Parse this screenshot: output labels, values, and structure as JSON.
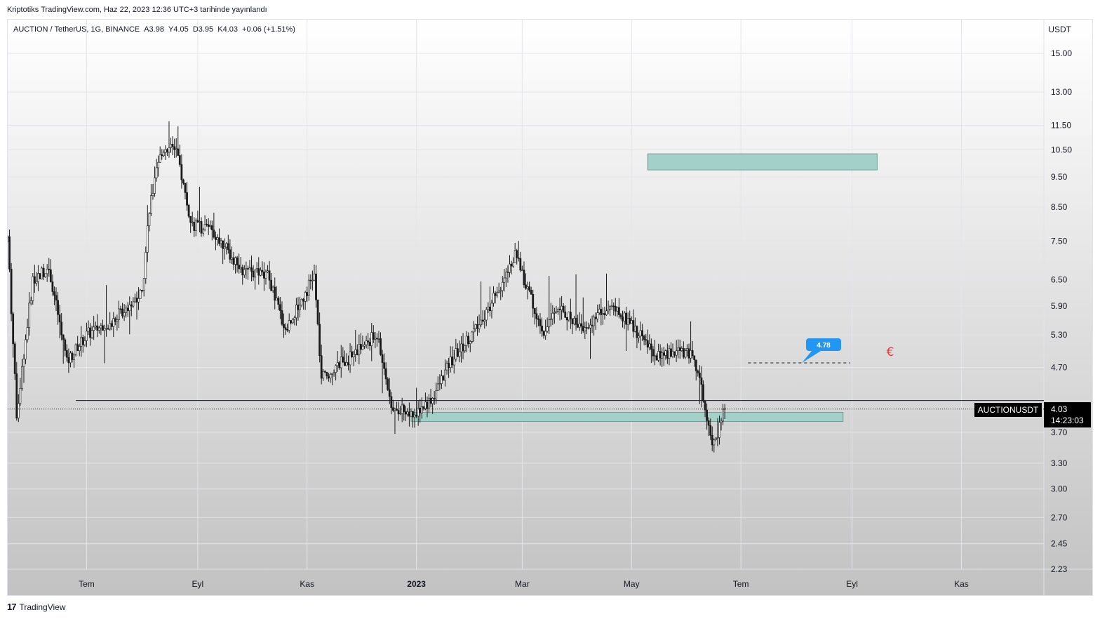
{
  "header": {
    "publisher_line": "Kriptotiks TradingView.com, Haz 22, 2023 12:36 UTC+3 tarihinde yayınlandı"
  },
  "legend": {
    "symbol": "AUCTION / TetherUS, 1G, BINANCE",
    "open": "A3.98",
    "high": "Y4.05",
    "low": "D3.95",
    "close": "K4.03",
    "change": "+0.06 (+1.51%)"
  },
  "currency": "USDT",
  "price_tag": {
    "symbol": "AUCTIONUSDT",
    "price": "4.03",
    "countdown": "14:23:03"
  },
  "annotations": {
    "callout_value": "4.78",
    "euro_mark": "€"
  },
  "footer": {
    "brand": "TradingView",
    "logo_text": "17"
  },
  "colors": {
    "background_top": "#ffffff",
    "background_bottom": "#c2c2c2",
    "candle": "#1a1a1a",
    "zone_fill": "#a3d1c9",
    "callout_blue": "#2196f3",
    "euro_red": "#e8383d",
    "price_tag_bg": "#000000"
  },
  "chart_data": {
    "type": "candlestick",
    "symbol": "AUCTION / TetherUS",
    "interval": "1G",
    "exchange": "BINANCE",
    "scale": "log",
    "ylim": [
      2.15,
      16.5
    ],
    "y_ticks": [
      "15.00",
      "13.00",
      "11.50",
      "10.50",
      "9.50",
      "8.50",
      "7.50",
      "6.50",
      "5.90",
      "5.30",
      "4.70",
      "3.70",
      "3.30",
      "3.00",
      "2.70",
      "2.45",
      "2.23"
    ],
    "x_ticks": [
      "Tem",
      "Eyl",
      "Kas",
      "2023",
      "Mar",
      "May",
      "Tem",
      "Eyl",
      "Kas"
    ],
    "x_range": [
      "2022-05-18",
      "2023-12-17"
    ],
    "grid": true,
    "zones": [
      {
        "from": "2023-05-10",
        "to": "2023-09-15",
        "low": 9.75,
        "high": 10.35
      },
      {
        "from": "2022-12-29",
        "to": "2023-08-27",
        "low": 3.85,
        "high": 3.98
      }
    ],
    "horizontal_lines": [
      {
        "value": 4.16,
        "from": "2022-06-25",
        "style": "solid"
      },
      {
        "value": 4.78,
        "from": "2023-07-05",
        "to": "2023-08-31",
        "style": "dashed"
      }
    ],
    "last_price": 4.03,
    "price_path": [
      {
        "date": "2022-05-18",
        "close": 7.6
      },
      {
        "date": "2022-05-23",
        "close": 3.95
      },
      {
        "date": "2022-06-01",
        "close": 6.5
      },
      {
        "date": "2022-06-10",
        "close": 6.8
      },
      {
        "date": "2022-06-20",
        "close": 4.8
      },
      {
        "date": "2022-07-01",
        "close": 5.3
      },
      {
        "date": "2022-07-15",
        "close": 5.6
      },
      {
        "date": "2022-08-01",
        "close": 6.2
      },
      {
        "date": "2022-08-05",
        "close": 8.5
      },
      {
        "date": "2022-08-12",
        "close": 10.5
      },
      {
        "date": "2022-08-20",
        "close": 10.6
      },
      {
        "date": "2022-08-28",
        "close": 8.0
      },
      {
        "date": "2022-09-10",
        "close": 7.8
      },
      {
        "date": "2022-09-25",
        "close": 6.7
      },
      {
        "date": "2022-10-10",
        "close": 6.6
      },
      {
        "date": "2022-10-20",
        "close": 5.4
      },
      {
        "date": "2022-11-05",
        "close": 6.6
      },
      {
        "date": "2022-11-09",
        "close": 4.5
      },
      {
        "date": "2022-11-25",
        "close": 4.9
      },
      {
        "date": "2022-12-10",
        "close": 5.3
      },
      {
        "date": "2022-12-18",
        "close": 4.1
      },
      {
        "date": "2022-12-30",
        "close": 3.95
      },
      {
        "date": "2023-01-10",
        "close": 4.2
      },
      {
        "date": "2023-01-20",
        "close": 4.8
      },
      {
        "date": "2023-02-05",
        "close": 5.5
      },
      {
        "date": "2023-02-20",
        "close": 6.6
      },
      {
        "date": "2023-02-25",
        "close": 7.1
      },
      {
        "date": "2023-03-05",
        "close": 6.2
      },
      {
        "date": "2023-03-12",
        "close": 5.3
      },
      {
        "date": "2023-03-20",
        "close": 5.9
      },
      {
        "date": "2023-04-05",
        "close": 5.4
      },
      {
        "date": "2023-04-18",
        "close": 5.9
      },
      {
        "date": "2023-05-01",
        "close": 5.5
      },
      {
        "date": "2023-05-15",
        "close": 4.9
      },
      {
        "date": "2023-05-28",
        "close": 5.0
      },
      {
        "date": "2023-06-05",
        "close": 4.9
      },
      {
        "date": "2023-06-10",
        "close": 4.2
      },
      {
        "date": "2023-06-15",
        "close": 3.6
      },
      {
        "date": "2023-06-18",
        "close": 3.7
      },
      {
        "date": "2023-06-22",
        "close": 4.03
      }
    ]
  }
}
